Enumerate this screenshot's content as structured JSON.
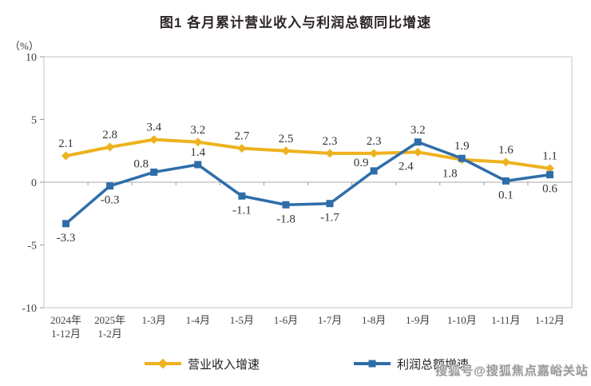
{
  "title": "图1 各月累计营业收入与利润总额同比增速",
  "watermark": "搜狐号@搜狐焦点嘉峪关站",
  "colors": {
    "revenue_line": "#EDB21F",
    "profit_line": "#2E6DA9",
    "axis_border": "#c6c6c6",
    "zero_line": "#a8a8a8",
    "tick": "#9a9a9a",
    "label_text": "#333333",
    "axis_text": "#404040"
  },
  "chart_data": {
    "type": "line",
    "title": "图1 各月累计营业收入与利润总额同比增速",
    "unit_label": "（%）",
    "categories": [
      "2024年|1-12月",
      "2025年|1-2月",
      "1-3月",
      "1-4月",
      "1-5月",
      "1-6月",
      "1-7月",
      "1-8月",
      "1-9月",
      "1-10月",
      "1-11月",
      "1-12月"
    ],
    "series": [
      {
        "name": "营业收入增速",
        "color": "#EDB21F",
        "marker": "diamond",
        "values": [
          2.1,
          2.8,
          3.4,
          3.2,
          2.7,
          2.5,
          2.3,
          2.3,
          2.4,
          1.8,
          1.6,
          1.1
        ],
        "label_side": [
          "above",
          "above",
          "above",
          "above",
          "above",
          "above",
          "above",
          "above",
          "below-left",
          "below-left",
          "above",
          "above"
        ]
      },
      {
        "name": "利润总额增速",
        "color": "#2E6DA9",
        "marker": "square",
        "values": [
          -3.3,
          -0.3,
          0.8,
          1.4,
          -1.1,
          -1.8,
          -1.7,
          0.9,
          3.2,
          1.9,
          0.1,
          0.6
        ],
        "label_side": [
          "below",
          "below",
          "above-left",
          "above",
          "below",
          "below",
          "below",
          "above-left",
          "above",
          "above",
          "below",
          "below"
        ]
      }
    ],
    "ylim": [
      -10,
      10
    ],
    "yticks": [
      10,
      5,
      0,
      -5,
      -10
    ],
    "grid": false,
    "legend_position": "bottom"
  }
}
